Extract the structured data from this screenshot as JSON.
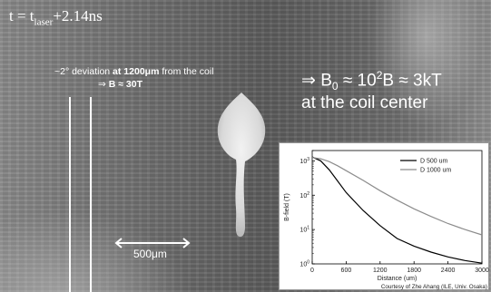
{
  "overlay": {
    "time_prefix": "t = t",
    "time_sub": "laser",
    "time_suffix": "+2.14ns",
    "deviation_line1_pre": "~2° deviation ",
    "deviation_line1_bold": "at 1200μm",
    "deviation_line1_post": " from the coil",
    "deviation_line2_pre": "⇒ ",
    "deviation_line2_bold": "B ≈ 30T",
    "b0_arrow": "⇒ B",
    "b0_sub": "0",
    "b0_mid": " ≈ 10",
    "b0_sup": "2",
    "b0_post": "B ≈ 3kT",
    "b0_line2": "at the coil center",
    "scale_label": "500μm"
  },
  "chart_data": {
    "type": "line",
    "xlabel": "Distance (um)",
    "ylabel": "B-field (T)",
    "xlim": [
      0,
      3000
    ],
    "ylim": [
      1,
      2000
    ],
    "y_scale": "log",
    "x_ticks": [
      "0",
      "600",
      "1200",
      "1800",
      "2400",
      "3000"
    ],
    "y_ticks": [
      "10^0",
      "10^1",
      "10^2",
      "10^3"
    ],
    "legend_position": "top-right",
    "credit": "Courtesy of Zhe Ahang (ILE, Univ. Osaka)",
    "series": [
      {
        "name": "D 500 um",
        "color": "#000000",
        "x": [
          0,
          150,
          300,
          450,
          600,
          900,
          1200,
          1500,
          1800,
          2100,
          2400,
          2700,
          3000
        ],
        "y": [
          1300,
          1000,
          550,
          260,
          120,
          36,
          13,
          5.5,
          3.3,
          2.2,
          1.6,
          1.25,
          1.05
        ]
      },
      {
        "name": "D 1000 um",
        "color": "#8c8c8c",
        "x": [
          0,
          150,
          300,
          450,
          600,
          900,
          1200,
          1500,
          1800,
          2100,
          2400,
          2700,
          3000
        ],
        "y": [
          1250,
          1150,
          950,
          720,
          520,
          270,
          135,
          72,
          40,
          24,
          15,
          10,
          7
        ]
      }
    ]
  }
}
